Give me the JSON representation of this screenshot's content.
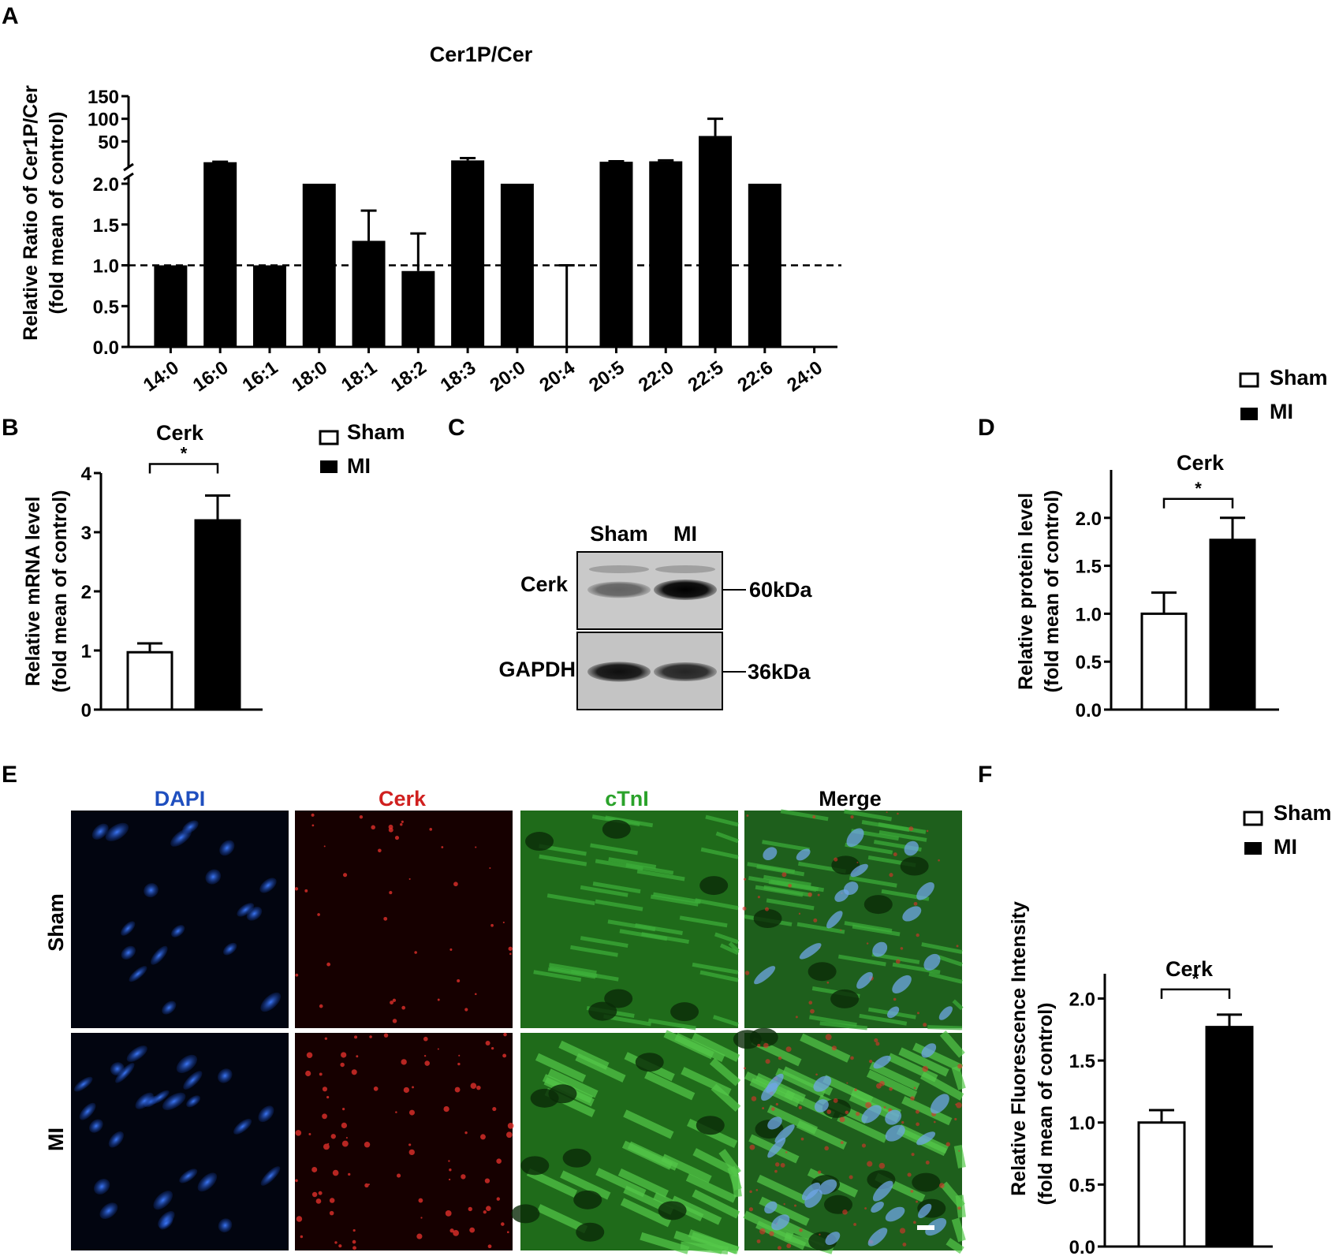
{
  "figure": {
    "panel_labels": [
      "A",
      "B",
      "C",
      "D",
      "E",
      "F"
    ],
    "legend": {
      "sham": "Sham",
      "mi": "MI"
    },
    "colors": {
      "bar_fill": "#000000",
      "sham_fill": "#ffffff",
      "dapi": "#1f4fbf",
      "cerk": "#d0201f",
      "ctni": "#2aa22a",
      "merge": "#000000"
    }
  },
  "panel_c": {
    "lanes": [
      "Sham",
      "MI"
    ],
    "rows": [
      {
        "label": "Cerk",
        "marker": "60kDa",
        "band_intensity": [
          0.35,
          1.0
        ]
      },
      {
        "label": "GAPDH",
        "marker": "36kDa",
        "band_intensity": [
          0.9,
          0.75
        ]
      }
    ]
  },
  "panel_e": {
    "columns": [
      "DAPI",
      "Cerk",
      "cTnI",
      "Merge"
    ],
    "rows": [
      "Sham",
      "MI"
    ]
  },
  "chart_data": [
    {
      "panel": "A",
      "type": "bar",
      "title": "Cer1P/Cer",
      "ylabel": [
        "Relative Ratio of Cer1P/Cer",
        "(fold mean of control)"
      ],
      "categories": [
        "14:0",
        "16:0",
        "16:1",
        "18:0",
        "18:1",
        "18:2",
        "18:3",
        "20:0",
        "20:4",
        "20:5",
        "22:0",
        "22:5",
        "22:6",
        "24:0"
      ],
      "values": [
        1,
        4,
        1,
        2,
        1.3,
        0.93,
        8,
        2,
        0,
        5,
        6,
        62,
        2,
        0
      ],
      "errors": [
        0,
        1,
        0,
        0,
        0.37,
        0.46,
        5,
        0,
        1,
        1,
        2,
        38,
        0,
        0
      ],
      "broken_axis": true,
      "ylim_lower": [
        0,
        2
      ],
      "ylim_upper": [
        0,
        150
      ],
      "yticks_lower": [
        "0.0",
        "0.5",
        "1.0",
        "1.5",
        "2.0"
      ],
      "yticks_upper": [
        "50",
        "100",
        "150"
      ],
      "reference_line": 1.0
    },
    {
      "panel": "B",
      "type": "bar",
      "title": "Cerk",
      "ylabel": [
        "Relative mRNA level",
        "(fold mean of control)"
      ],
      "categories": [
        "Sham",
        "MI"
      ],
      "values": [
        0.97,
        3.2
      ],
      "errors": [
        0.15,
        0.42
      ],
      "ylim": [
        0,
        4
      ],
      "yticks": [
        "0",
        "1",
        "2",
        "3",
        "4"
      ],
      "significance": "*"
    },
    {
      "panel": "D",
      "type": "bar",
      "title": "Cerk",
      "ylabel": [
        "Relative protein level",
        "(fold mean of control)"
      ],
      "categories": [
        "Sham",
        "MI"
      ],
      "values": [
        1.0,
        1.77
      ],
      "errors": [
        0.22,
        0.23
      ],
      "ylim": [
        0,
        2.5
      ],
      "yticks": [
        "0.0",
        "0.5",
        "1.0",
        "1.5",
        "2.0"
      ],
      "significance": "*"
    },
    {
      "panel": "F",
      "type": "bar",
      "title": "Cerk",
      "ylabel": [
        "Relative Fluorescence Intensity",
        "(fold mean of control)"
      ],
      "categories": [
        "Sham",
        "MI"
      ],
      "values": [
        1.0,
        1.77
      ],
      "errors": [
        0.1,
        0.1
      ],
      "ylim": [
        0,
        2.2
      ],
      "yticks": [
        "0.0",
        "0.5",
        "1.0",
        "1.5",
        "2.0"
      ],
      "significance": "*"
    }
  ]
}
